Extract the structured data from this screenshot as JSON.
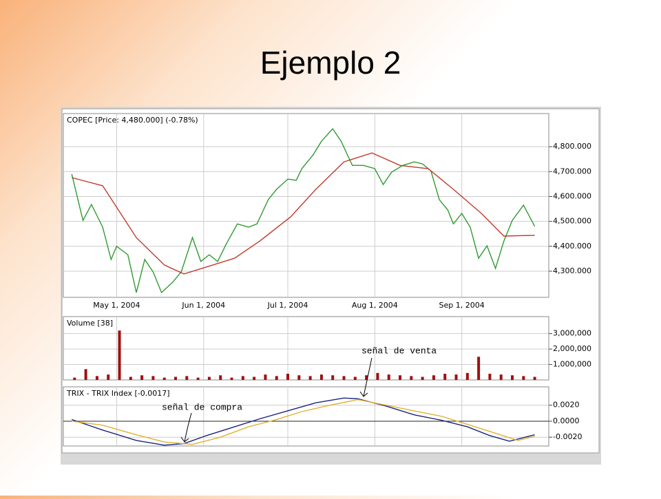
{
  "slide_title": "Ejemplo 2",
  "chart_data": [
    {
      "type": "line",
      "title": "COPEC [Price: 4,480.000] (-0.78%)",
      "xlim": [
        "2004-04-12",
        "2004-10-02"
      ],
      "xticks": [
        {
          "value": "2004-05-01",
          "label": "May 1, 2004"
        },
        {
          "value": "2004-06-01",
          "label": "Jun 1, 2004"
        },
        {
          "value": "2004-07-01",
          "label": "Jul 1, 2004"
        },
        {
          "value": "2004-08-01",
          "label": "Aug 1, 2004"
        },
        {
          "value": "2004-09-01",
          "label": "Sep 1, 2004"
        }
      ],
      "ylim": [
        4195,
        4933
      ],
      "yticks": [
        {
          "value": 4300,
          "label": "4,300.000"
        },
        {
          "value": 4400,
          "label": "4,400.000"
        },
        {
          "value": 4500,
          "label": "4,500.000"
        },
        {
          "value": 4600,
          "label": "4,600.000"
        },
        {
          "value": 4700,
          "label": "4,700.000"
        },
        {
          "value": 4800,
          "label": "4,800.000"
        }
      ],
      "grid": true,
      "series": [
        {
          "color": "#2e9a2e",
          "x": [
            "2004-04-15",
            "2004-04-19",
            "2004-04-22",
            "2004-04-26",
            "2004-04-29",
            "2004-05-01",
            "2004-05-05",
            "2004-05-08",
            "2004-05-11",
            "2004-05-14",
            "2004-05-17",
            "2004-05-21",
            "2004-05-24",
            "2004-05-28",
            "2004-05-31",
            "2004-06-03",
            "2004-06-06",
            "2004-06-09",
            "2004-06-13",
            "2004-06-17",
            "2004-06-20",
            "2004-06-24",
            "2004-06-27",
            "2004-07-01",
            "2004-07-04",
            "2004-07-06",
            "2004-07-10",
            "2004-07-13",
            "2004-07-17",
            "2004-07-20",
            "2004-07-24",
            "2004-07-28",
            "2004-08-01",
            "2004-08-04",
            "2004-08-07",
            "2004-08-11",
            "2004-08-15",
            "2004-08-18",
            "2004-08-21",
            "2004-08-24",
            "2004-08-27",
            "2004-08-29",
            "2004-09-01",
            "2004-09-04",
            "2004-09-07",
            "2004-09-10",
            "2004-09-13",
            "2004-09-16",
            "2004-09-19",
            "2004-09-23",
            "2004-09-27"
          ],
          "values": [
            4690,
            4504,
            4568,
            4477,
            4347,
            4400,
            4366,
            4214,
            4347,
            4297,
            4214,
            4256,
            4297,
            4435,
            4339,
            4366,
            4339,
            4408,
            4490,
            4477,
            4490,
            4587,
            4629,
            4670,
            4665,
            4712,
            4767,
            4822,
            4872,
            4822,
            4725,
            4725,
            4712,
            4648,
            4698,
            4725,
            4739,
            4731,
            4703,
            4587,
            4546,
            4490,
            4532,
            4477,
            4352,
            4402,
            4311,
            4421,
            4504,
            4565,
            4480
          ]
        },
        {
          "color": "#c0392b",
          "x": [
            "2004-04-15",
            "2004-04-26",
            "2004-05-08",
            "2004-05-18",
            "2004-05-25",
            "2004-06-02",
            "2004-06-12",
            "2004-06-21",
            "2004-07-02",
            "2004-07-11",
            "2004-07-21",
            "2004-07-31",
            "2004-08-10",
            "2004-08-20",
            "2004-08-29",
            "2004-09-08",
            "2004-09-16",
            "2004-09-27"
          ],
          "values": [
            4676,
            4643,
            4435,
            4325,
            4289,
            4317,
            4352,
            4421,
            4518,
            4629,
            4739,
            4775,
            4725,
            4712,
            4629,
            4532,
            4441,
            4444
          ]
        }
      ]
    },
    {
      "type": "bar",
      "title": "Volume [38]",
      "color": "#a01010",
      "x": [
        "2004-04-16",
        "2004-04-20",
        "2004-04-24",
        "2004-04-28",
        "2004-05-02",
        "2004-05-06",
        "2004-05-10",
        "2004-05-14",
        "2004-05-18",
        "2004-05-22",
        "2004-05-26",
        "2004-05-30",
        "2004-06-03",
        "2004-06-07",
        "2004-06-11",
        "2004-06-15",
        "2004-06-19",
        "2004-06-23",
        "2004-06-27",
        "2004-07-01",
        "2004-07-05",
        "2004-07-09",
        "2004-07-13",
        "2004-07-17",
        "2004-07-21",
        "2004-07-25",
        "2004-07-29",
        "2004-08-02",
        "2004-08-06",
        "2004-08-10",
        "2004-08-14",
        "2004-08-18",
        "2004-08-22",
        "2004-08-26",
        "2004-08-30",
        "2004-09-03",
        "2004-09-07",
        "2004-09-11",
        "2004-09-15",
        "2004-09-19",
        "2004-09-23",
        "2004-09-27"
      ],
      "values": [
        150000,
        700000,
        250000,
        350000,
        3200000,
        200000,
        300000,
        250000,
        150000,
        200000,
        250000,
        150000,
        200000,
        300000,
        150000,
        250000,
        200000,
        350000,
        250000,
        400000,
        300000,
        250000,
        350000,
        300000,
        250000,
        200000,
        300000,
        450000,
        350000,
        300000,
        250000,
        200000,
        300000,
        400000,
        350000,
        450000,
        1500000,
        400000,
        350000,
        300000,
        250000,
        200000
      ],
      "ylim": [
        0,
        4100000
      ],
      "yticks": [
        {
          "value": 1000000,
          "label": "1,000,000"
        },
        {
          "value": 2000000,
          "label": "2,000,000"
        },
        {
          "value": 3000000,
          "label": "3,000,000"
        }
      ],
      "grid": true
    },
    {
      "type": "line",
      "title": "TRIX - TRIX Index [-0.0017]",
      "ylim": [
        -0.0031,
        0.0043
      ],
      "yticks": [
        {
          "value": -0.002,
          "label": "-0.0020"
        },
        {
          "value": 0,
          "label": "0.0000"
        },
        {
          "value": 0.002,
          "label": "0.0020"
        }
      ],
      "grid": true,
      "annotations": [
        "señal de compra",
        "señal de venta"
      ],
      "series": [
        {
          "color": "#1a237e",
          "x": [
            "2004-04-15",
            "2004-04-26",
            "2004-05-08",
            "2004-05-18",
            "2004-05-25",
            "2004-06-02",
            "2004-06-12",
            "2004-06-21",
            "2004-07-02",
            "2004-07-11",
            "2004-07-21",
            "2004-07-26",
            "2004-08-05",
            "2004-08-15",
            "2004-08-25",
            "2004-09-03",
            "2004-09-11",
            "2004-09-18",
            "2004-09-27"
          ],
          "values": [
            0.0002,
            -0.0011,
            -0.0024,
            -0.003,
            -0.0028,
            -0.0018,
            -0.0007,
            0.0003,
            0.0014,
            0.0023,
            0.0029,
            0.0028,
            0.0019,
            0.0008,
            0.0001,
            -0.0007,
            -0.0018,
            -0.0025,
            -0.0017
          ]
        },
        {
          "color": "#e0b030",
          "x": [
            "2004-04-15",
            "2004-04-26",
            "2004-05-08",
            "2004-05-18",
            "2004-05-28",
            "2004-06-07",
            "2004-06-17",
            "2004-06-27",
            "2004-07-06",
            "2004-07-16",
            "2004-07-26",
            "2004-08-05",
            "2004-08-15",
            "2004-08-25",
            "2004-09-03",
            "2004-09-13",
            "2004-09-21",
            "2004-09-27"
          ],
          "values": [
            0,
            -0.0005,
            -0.0017,
            -0.0026,
            -0.0029,
            -0.002,
            -0.0007,
            0.0002,
            0.0012,
            0.002,
            0.0027,
            0.002,
            0.0013,
            0.0006,
            -0.0004,
            -0.0015,
            -0.0024,
            -0.0019
          ]
        }
      ]
    }
  ]
}
